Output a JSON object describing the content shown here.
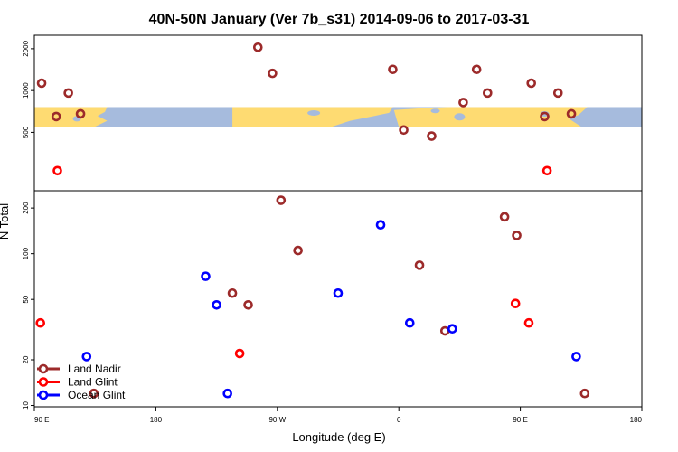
{
  "chart_data": {
    "type": "scatter",
    "title": "40N-50N January (Ver 7b_s31)   2014-09-06 to 2017-03-31",
    "xlabel": "Longitude (deg E)",
    "ylabel": "N Total",
    "x_ticks": [
      {
        "pos": 0,
        "label": "90 E"
      },
      {
        "pos": 1,
        "label": "180"
      },
      {
        "pos": 2,
        "label": "90 W"
      },
      {
        "pos": 3,
        "label": "0"
      },
      {
        "pos": 4,
        "label": "90 E"
      },
      {
        "pos": 5,
        "label": "180"
      }
    ],
    "xlim": [
      0,
      5
    ],
    "legend_position": "bottom-left",
    "panels": [
      {
        "name": "upper",
        "scale": "log",
        "ylim": [
          190,
          2500
        ],
        "y_ticks": [
          {
            "value": 500,
            "label": "500"
          },
          {
            "value": 1000,
            "label": "1000"
          },
          {
            "value": 2000,
            "label": "2000"
          }
        ],
        "map_band": {
          "value_low": 550,
          "value_high": 760,
          "ocean_color": "#a6bbdd",
          "land_color": "#fedb72"
        }
      },
      {
        "name": "lower",
        "scale": "log",
        "ylim": [
          9.8,
          260
        ],
        "y_ticks": [
          {
            "value": 10,
            "label": "10"
          },
          {
            "value": 20,
            "label": "20"
          },
          {
            "value": 50,
            "label": "50"
          },
          {
            "value": 100,
            "label": "100"
          },
          {
            "value": 200,
            "label": "200"
          }
        ]
      }
    ],
    "series": [
      {
        "name": "Land Nadir",
        "color": "#9c2a2a",
        "points": [
          {
            "panel": "upper",
            "x": 0.06,
            "y": 1130
          },
          {
            "panel": "upper",
            "x": 0.18,
            "y": 650
          },
          {
            "panel": "upper",
            "x": 0.28,
            "y": 960
          },
          {
            "panel": "upper",
            "x": 0.38,
            "y": 680
          },
          {
            "panel": "upper",
            "x": 1.84,
            "y": 2050
          },
          {
            "panel": "upper",
            "x": 1.96,
            "y": 1330
          },
          {
            "panel": "upper",
            "x": 2.95,
            "y": 1420
          },
          {
            "panel": "upper",
            "x": 3.04,
            "y": 520
          },
          {
            "panel": "upper",
            "x": 3.27,
            "y": 470
          },
          {
            "panel": "upper",
            "x": 3.53,
            "y": 820
          },
          {
            "panel": "upper",
            "x": 3.64,
            "y": 1420
          },
          {
            "panel": "upper",
            "x": 3.73,
            "y": 960
          },
          {
            "panel": "upper",
            "x": 4.09,
            "y": 1130
          },
          {
            "panel": "upper",
            "x": 4.2,
            "y": 650
          },
          {
            "panel": "upper",
            "x": 4.31,
            "y": 960
          },
          {
            "panel": "upper",
            "x": 4.42,
            "y": 680
          },
          {
            "panel": "lower",
            "x": 1.63,
            "y": 55
          },
          {
            "panel": "lower",
            "x": 1.76,
            "y": 46
          },
          {
            "panel": "lower",
            "x": 2.03,
            "y": 225
          },
          {
            "panel": "lower",
            "x": 2.17,
            "y": 105
          },
          {
            "panel": "lower",
            "x": 0.49,
            "y": 12
          },
          {
            "panel": "lower",
            "x": 3.17,
            "y": 84
          },
          {
            "panel": "lower",
            "x": 3.38,
            "y": 31
          },
          {
            "panel": "lower",
            "x": 3.87,
            "y": 175
          },
          {
            "panel": "lower",
            "x": 3.97,
            "y": 132
          },
          {
            "panel": "lower",
            "x": 4.53,
            "y": 12
          }
        ]
      },
      {
        "name": "Land Glint",
        "color": "#ff0000",
        "points": [
          {
            "panel": "upper",
            "x": 0.19,
            "y": 265
          },
          {
            "panel": "upper",
            "x": 4.22,
            "y": 265
          },
          {
            "panel": "lower",
            "x": 0.05,
            "y": 35
          },
          {
            "panel": "lower",
            "x": 1.69,
            "y": 22
          },
          {
            "panel": "lower",
            "x": 3.96,
            "y": 47
          },
          {
            "panel": "lower",
            "x": 4.07,
            "y": 35
          }
        ]
      },
      {
        "name": "Ocean Glint",
        "color": "#0000ff",
        "points": [
          {
            "panel": "lower",
            "x": 0.43,
            "y": 21
          },
          {
            "panel": "lower",
            "x": 1.41,
            "y": 71
          },
          {
            "panel": "lower",
            "x": 1.5,
            "y": 46
          },
          {
            "panel": "lower",
            "x": 1.59,
            "y": 12
          },
          {
            "panel": "lower",
            "x": 2.5,
            "y": 55
          },
          {
            "panel": "lower",
            "x": 2.85,
            "y": 155
          },
          {
            "panel": "lower",
            "x": 3.09,
            "y": 35
          },
          {
            "panel": "lower",
            "x": 3.44,
            "y": 32
          },
          {
            "panel": "lower",
            "x": 4.46,
            "y": 21
          }
        ]
      }
    ]
  }
}
